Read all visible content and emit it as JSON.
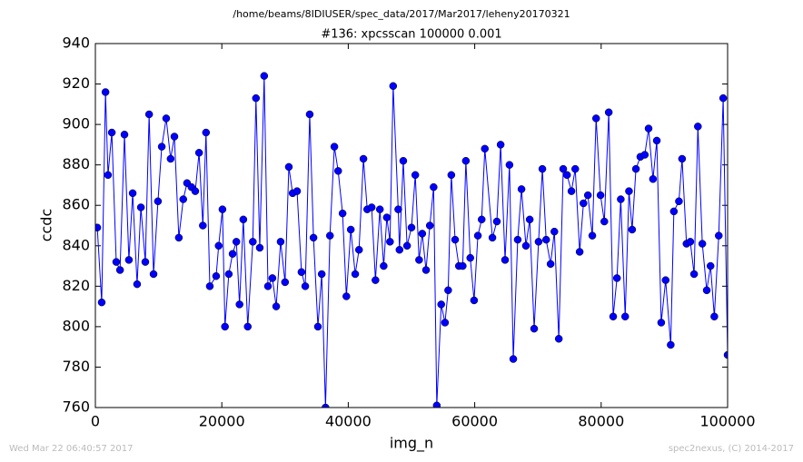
{
  "chart_data": {
    "type": "line",
    "suptitle": "/home/beams/8IDIUSER/spec_data/2017/Mar2017/leheny20170321",
    "title": "#136: xpcsscan 100000 0.001",
    "xlabel": "img_n",
    "ylabel": "ccdc",
    "footer_left": "Wed Mar 22 06:40:57 2017",
    "footer_right": "spec2nexus, (C) 2014-2017",
    "xlim": [
      0,
      100000
    ],
    "xticks": [
      0,
      20000,
      40000,
      60000,
      80000,
      100000
    ],
    "ylim": [
      760,
      940
    ],
    "yticks": [
      760,
      780,
      800,
      820,
      840,
      860,
      880,
      900,
      920,
      940
    ],
    "x": [
      300,
      1000,
      1600,
      2000,
      2600,
      3300,
      3900,
      4600,
      5300,
      5900,
      6600,
      7200,
      7900,
      8500,
      9200,
      9900,
      10500,
      11200,
      11900,
      12500,
      13200,
      13900,
      14500,
      15200,
      15800,
      16400,
      17000,
      17500,
      18100,
      19100,
      19500,
      20100,
      20500,
      21100,
      21700,
      22300,
      22800,
      23400,
      24100,
      24900,
      25400,
      26000,
      26700,
      27300,
      28000,
      28600,
      29300,
      30000,
      30600,
      31200,
      31900,
      32600,
      33200,
      33900,
      34500,
      35200,
      35800,
      36400,
      37100,
      37800,
      38400,
      39100,
      39700,
      40400,
      41100,
      41700,
      42400,
      43000,
      43700,
      44300,
      45000,
      45600,
      46100,
      46600,
      47100,
      47900,
      48100,
      48700,
      49300,
      50000,
      50600,
      51200,
      51700,
      52300,
      52900,
      53500,
      54000,
      54700,
      55300,
      55800,
      56300,
      56900,
      57500,
      58100,
      58600,
      59300,
      59900,
      60500,
      61100,
      61600,
      62800,
      63500,
      64100,
      64800,
      65500,
      66100,
      66800,
      67400,
      68100,
      68700,
      69400,
      70100,
      70700,
      71300,
      72000,
      72600,
      73300,
      74000,
      74600,
      75300,
      75900,
      76600,
      77200,
      77900,
      78600,
      79200,
      79900,
      80500,
      81200,
      81900,
      82500,
      83100,
      83800,
      84400,
      84900,
      85500,
      86200,
      86900,
      87500,
      88200,
      88800,
      89500,
      90200,
      91000,
      91500,
      92300,
      92800,
      93500,
      94100,
      94700,
      95300,
      96000,
      96700,
      97300,
      97900,
      98600,
      99300,
      100000
    ],
    "series": [
      {
        "name": "ccdc",
        "color": "#0000ff",
        "values": [
          849,
          812,
          916,
          875,
          896,
          832,
          828,
          895,
          833,
          866,
          821,
          859,
          832,
          905,
          826,
          862,
          889,
          903,
          883,
          894,
          844,
          863,
          871,
          869,
          867,
          886,
          850,
          896,
          820,
          825,
          840,
          858,
          800,
          826,
          836,
          842,
          811,
          853,
          800,
          842,
          913,
          839,
          924,
          820,
          824,
          810,
          842,
          822,
          879,
          866,
          867,
          827,
          820,
          905,
          844,
          800,
          826,
          760,
          845,
          889,
          877,
          856,
          815,
          848,
          826,
          838,
          883,
          858,
          859,
          823,
          858,
          830,
          854,
          842,
          919,
          858,
          838,
          882,
          840,
          849,
          875,
          833,
          846,
          828,
          850,
          869,
          761,
          811,
          802,
          818,
          875,
          843,
          830,
          830,
          882,
          834,
          813,
          845,
          853,
          888,
          844,
          852,
          890,
          833,
          880,
          784,
          843,
          868,
          840,
          853,
          799,
          842,
          878,
          843,
          831,
          847,
          794,
          878,
          875,
          867,
          878,
          837,
          861,
          865,
          845,
          903,
          865,
          852,
          906,
          805,
          824,
          863,
          805,
          867,
          848,
          878,
          884,
          885,
          898,
          873,
          892,
          802,
          823,
          791,
          857,
          862,
          883,
          841,
          842,
          826,
          899,
          841,
          818,
          830,
          805,
          845,
          913,
          786
        ]
      }
    ]
  }
}
